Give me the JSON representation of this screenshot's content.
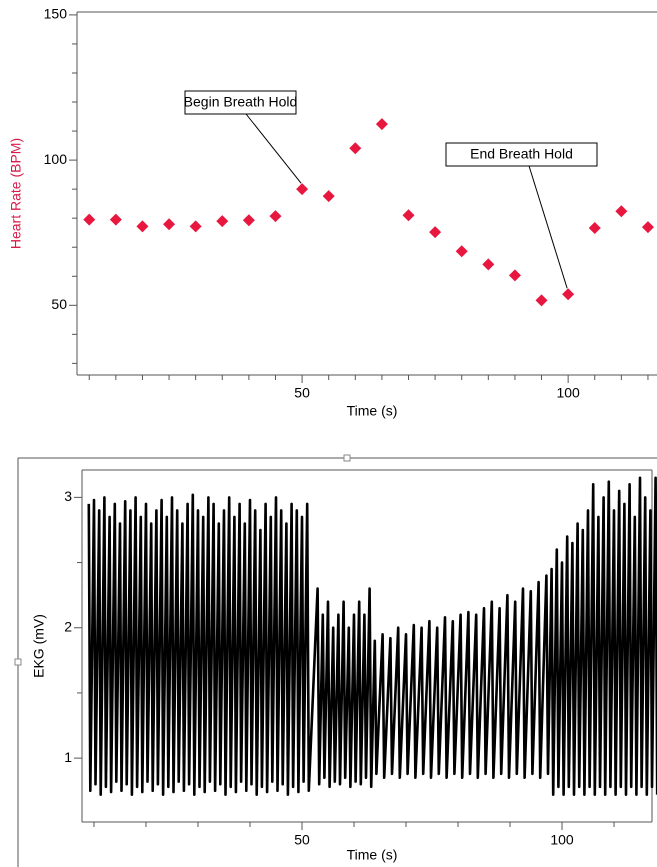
{
  "chart_data": [
    {
      "type": "scatter",
      "x_label": "Time (s)",
      "y_label": "Heart Rate (BPM)",
      "color": "#e8173f",
      "label_color": "#d81b4a",
      "x": [
        10,
        15,
        20,
        25,
        30,
        35,
        40,
        45,
        50,
        55,
        60,
        65,
        70,
        75,
        80,
        85,
        90,
        95,
        100,
        105,
        110,
        115
      ],
      "values": [
        79.5,
        79.5,
        77.2,
        77.9,
        77.2,
        79,
        79.3,
        80.7,
        90,
        87.6,
        104.1,
        112.4,
        81,
        75.2,
        68.6,
        64.1,
        60.3,
        51.7,
        53.8,
        76.6,
        82.4,
        76.9
      ],
      "xlim": [
        7.7,
        116.7
      ],
      "ylim": [
        26,
        151
      ],
      "xticks": [
        50,
        100
      ],
      "xticks_minor": [
        10,
        15,
        20,
        25,
        30,
        35,
        40,
        45,
        55,
        60,
        65,
        70,
        75,
        80,
        85,
        90,
        95,
        105,
        110,
        115
      ],
      "yticks": [
        50,
        100,
        150
      ],
      "yticks_minor": [
        30,
        40,
        60,
        70,
        80,
        90,
        110,
        120,
        130,
        140
      ],
      "annotations": [
        "Begin Breath Hold",
        "End Breath Hold"
      ]
    },
    {
      "type": "line",
      "x_label": "Time (s)",
      "y_label": "EKG (mV)",
      "color": "#000000",
      "label_color": "#000000",
      "x": [
        9,
        9.3,
        10,
        10.3,
        11,
        11.3,
        12,
        12.3,
        13,
        13.3,
        14,
        14.3,
        15,
        15.3,
        16,
        16.3,
        17,
        17.3,
        18,
        18.3,
        19,
        19.3,
        20,
        20.3,
        21,
        21.3,
        22,
        22.3,
        23,
        23.3,
        24,
        24.3,
        25,
        25.3,
        26,
        26.3,
        27,
        27.3,
        28,
        28.3,
        29,
        29.3,
        30,
        30.3,
        31,
        31.3,
        32,
        32.3,
        33,
        33.3,
        34,
        34.3,
        35,
        35.3,
        36,
        36.3,
        37,
        37.3,
        38,
        38.3,
        39,
        39.3,
        40,
        40.3,
        41,
        41.3,
        42,
        42.3,
        43,
        43.3,
        44,
        44.3,
        45,
        45.3,
        46,
        46.3,
        47,
        47.3,
        48,
        48.3,
        49,
        49.3,
        50,
        50.3,
        51,
        51.3,
        53,
        53.3,
        54,
        54.3,
        55,
        55.3,
        56,
        56.3,
        57,
        57.3,
        58,
        58.3,
        59,
        59.3,
        60,
        60.3,
        61,
        61.3,
        62,
        62.3,
        63,
        63.3,
        64,
        64.3,
        65.5,
        65.8,
        67,
        67.3,
        68.5,
        68.8,
        70,
        70.3,
        71.5,
        71.8,
        73,
        73.3,
        74.5,
        74.8,
        76,
        76.3,
        77.5,
        77.8,
        79,
        79.3,
        80.5,
        80.8,
        82,
        82.3,
        83.5,
        83.8,
        85,
        85.3,
        86.5,
        86.8,
        88,
        88.3,
        89.5,
        89.8,
        91,
        91.3,
        92.5,
        92.8,
        94,
        94.3,
        95.5,
        95.8,
        97,
        97.3,
        98,
        98.3,
        99,
        99.3,
        100,
        100.3,
        101,
        101.3,
        102,
        102.3,
        103,
        103.3,
        104,
        104.3,
        105,
        105.3,
        106,
        106.3,
        107,
        107.3,
        108,
        108.3,
        109,
        109.3,
        110,
        110.3,
        111,
        111.3,
        112,
        112.3,
        113,
        113.3,
        114,
        114.3,
        115,
        115.3,
        116,
        116.3,
        117,
        117.3,
        118,
        118.3
      ],
      "values": [
        2.95,
        0.75,
        2.98,
        0.8,
        2.9,
        0.72,
        3.0,
        0.78,
        2.85,
        0.74,
        2.95,
        0.82,
        2.8,
        0.75,
        2.97,
        0.8,
        2.9,
        0.72,
        3.0,
        0.78,
        2.85,
        0.74,
        2.95,
        0.82,
        2.8,
        0.75,
        2.9,
        0.8,
        2.98,
        0.72,
        2.85,
        0.78,
        3.0,
        0.74,
        2.9,
        0.82,
        2.8,
        0.75,
        2.95,
        0.8,
        3.02,
        0.72,
        2.9,
        0.78,
        2.85,
        0.74,
        3.0,
        0.82,
        2.95,
        0.75,
        2.8,
        0.8,
        2.9,
        0.72,
        3.0,
        0.78,
        2.85,
        0.74,
        2.95,
        0.82,
        2.8,
        0.75,
        2.98,
        0.8,
        2.9,
        0.72,
        2.75,
        0.78,
        2.95,
        0.74,
        2.85,
        0.82,
        3.0,
        0.75,
        2.9,
        0.8,
        2.8,
        0.72,
        2.95,
        0.78,
        2.9,
        0.74,
        2.85,
        0.82,
        2.95,
        0.75,
        2.3,
        0.8,
        2.1,
        0.85,
        2.2,
        0.78,
        2.0,
        0.82,
        2.1,
        0.8,
        2.2,
        0.85,
        2.0,
        0.78,
        2.1,
        0.82,
        2.2,
        0.8,
        2.1,
        0.85,
        2.3,
        0.78,
        1.9,
        0.88,
        1.95,
        0.85,
        1.92,
        0.88,
        2.0,
        0.85,
        1.95,
        0.88,
        2.02,
        0.85,
        2.0,
        0.88,
        2.05,
        0.85,
        2.0,
        0.88,
        2.08,
        0.85,
        2.05,
        0.88,
        2.1,
        0.85,
        2.12,
        0.88,
        2.1,
        0.85,
        2.15,
        0.88,
        2.2,
        0.85,
        2.15,
        0.88,
        2.25,
        0.85,
        2.2,
        0.88,
        2.3,
        0.85,
        2.28,
        0.88,
        2.35,
        0.85,
        2.4,
        0.88,
        2.45,
        0.72,
        2.6,
        0.78,
        2.5,
        0.72,
        2.7,
        0.78,
        2.65,
        0.72,
        2.8,
        0.78,
        2.75,
        0.72,
        2.9,
        0.78,
        3.1,
        0.72,
        2.85,
        0.78,
        3.0,
        0.72,
        3.12,
        0.78,
        2.9,
        0.72,
        3.05,
        0.78,
        2.95,
        0.72,
        3.1,
        0.78,
        2.85,
        0.72,
        3.15,
        0.78,
        3.0,
        0.72,
        2.9,
        0.78,
        3.15,
        0.72
      ],
      "xlim": [
        7.7,
        117.3
      ],
      "ylim": [
        0.51,
        3.21
      ],
      "xticks": [
        50,
        100
      ],
      "xticks_minor": [
        10,
        20,
        30,
        40,
        60,
        70,
        80,
        90,
        110
      ],
      "yticks": [
        1,
        2,
        3
      ],
      "yticks_minor": [
        1.5,
        2.5
      ]
    }
  ]
}
